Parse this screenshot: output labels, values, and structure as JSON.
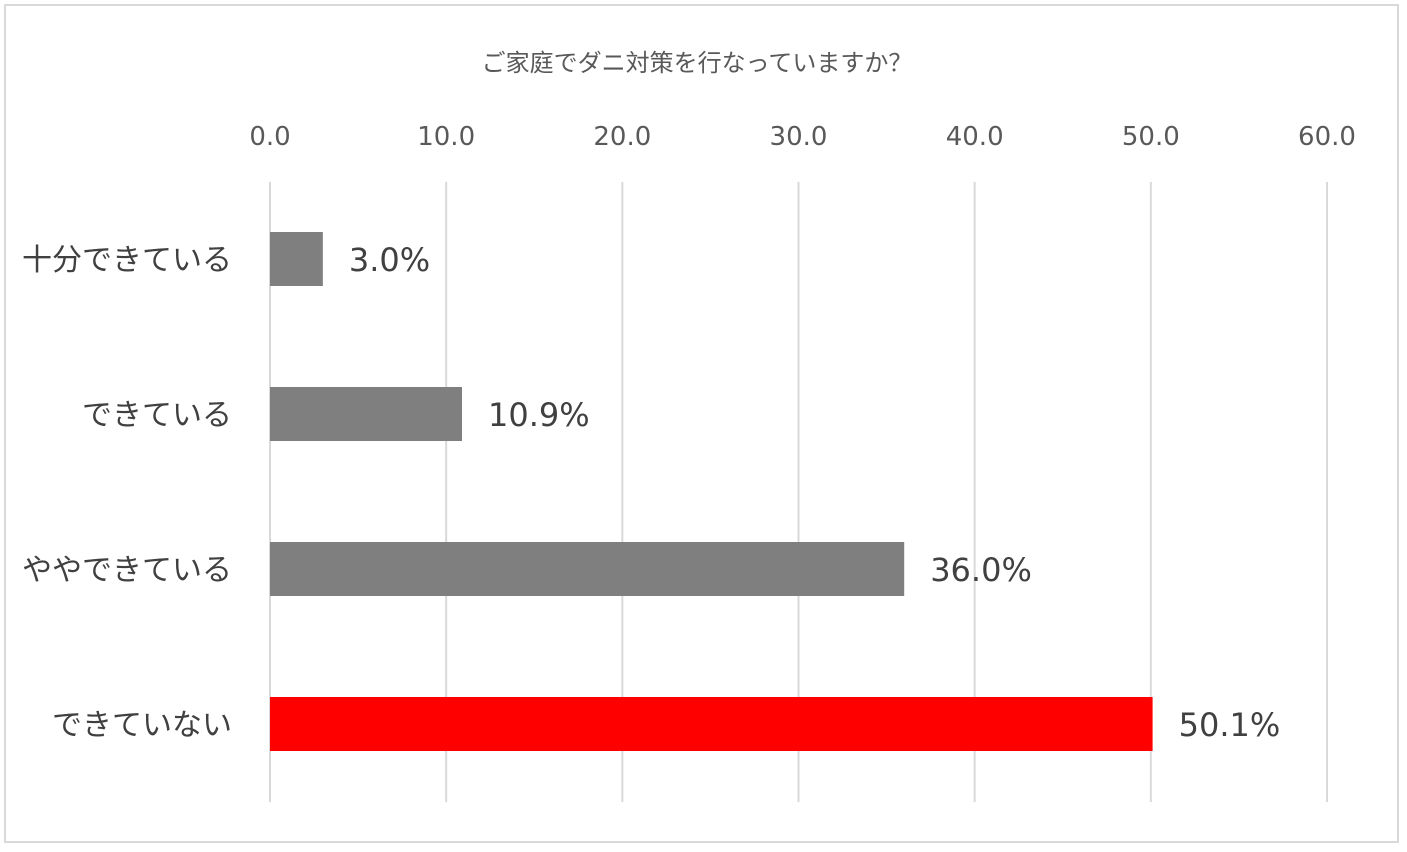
{
  "chart_data": {
    "type": "bar",
    "orientation": "horizontal",
    "title": "ご家庭でダニ対策を行なっていますか？",
    "categories": [
      "十分できている",
      "できている",
      "ややできている",
      "できていない"
    ],
    "values": [
      3.0,
      10.9,
      36.0,
      50.1
    ],
    "data_labels": [
      "3.0%",
      "10.9%",
      "36.0%",
      "50.1%"
    ],
    "xlim": [
      0,
      60
    ],
    "xticks": [
      0,
      10,
      20,
      30,
      40,
      50,
      60
    ],
    "xtick_labels": [
      "0.0",
      "10.0",
      "20.0",
      "30.0",
      "40.0",
      "50.0",
      "60.0"
    ],
    "x_axis_position": "top",
    "grid": true,
    "legend": "none",
    "colors": {
      "bar": "#7f7f7f",
      "highlight": "#ff0000",
      "highlight_index": 3,
      "grid": "#d9d9d9",
      "text": "#404040"
    }
  }
}
